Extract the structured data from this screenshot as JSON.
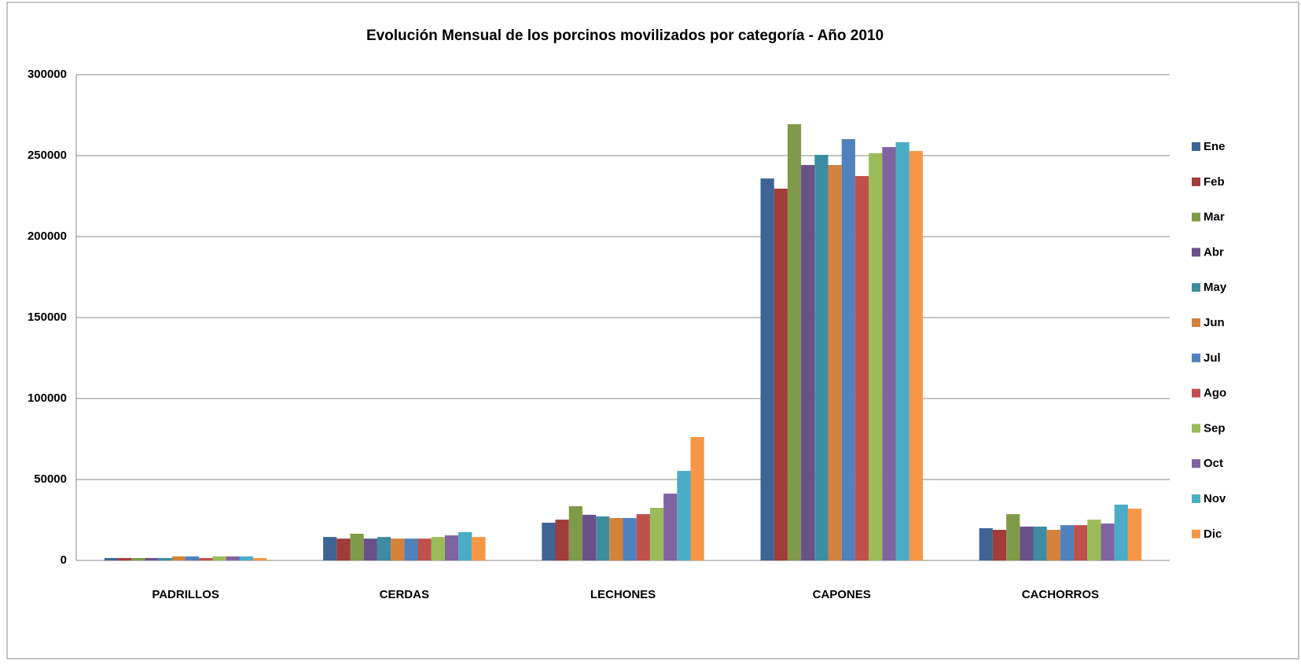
{
  "chart_data": {
    "type": "bar",
    "title": "Evolución Mensual de los porcinos movilizados por categoría - Año 2010",
    "categories": [
      "PADRILLOS",
      "CERDAS",
      "LECHONES",
      "CAPONES",
      "CACHORROS"
    ],
    "series": [
      {
        "name": "Ene",
        "color": "#3e6496",
        "values": [
          1500,
          14500,
          23300,
          235900,
          19900
        ]
      },
      {
        "name": "Feb",
        "color": "#a03c3a",
        "values": [
          1500,
          13500,
          25200,
          229600,
          18900
        ]
      },
      {
        "name": "Mar",
        "color": "#7f9a48",
        "values": [
          1500,
          16500,
          33500,
          269400,
          28600
        ]
      },
      {
        "name": "Abr",
        "color": "#6a5088",
        "values": [
          1500,
          13500,
          28200,
          244200,
          20900
        ]
      },
      {
        "name": "May",
        "color": "#3d8da2",
        "values": [
          1500,
          14500,
          27200,
          250500,
          20900
        ]
      },
      {
        "name": "Jun",
        "color": "#d4813a",
        "values": [
          2500,
          13500,
          26200,
          244200,
          18900
        ]
      },
      {
        "name": "Jul",
        "color": "#4f81bd",
        "values": [
          2500,
          13500,
          26200,
          260200,
          21800
        ]
      },
      {
        "name": "Ago",
        "color": "#c0504d",
        "values": [
          1500,
          13500,
          28600,
          237400,
          21800
        ]
      },
      {
        "name": "Sep",
        "color": "#9bbb59",
        "values": [
          2500,
          14500,
          32500,
          251500,
          25200
        ]
      },
      {
        "name": "Oct",
        "color": "#8064a2",
        "values": [
          2500,
          15500,
          41300,
          255300,
          22800
        ]
      },
      {
        "name": "Nov",
        "color": "#4bacc6",
        "values": [
          2500,
          17500,
          55300,
          258300,
          34500
        ]
      },
      {
        "name": "Dic",
        "color": "#f79646",
        "values": [
          1500,
          14500,
          76200,
          252900,
          32000
        ]
      }
    ],
    "ylim": [
      0,
      300000
    ],
    "yticks": [
      0,
      50000,
      100000,
      150000,
      200000,
      250000,
      300000
    ],
    "grid": true,
    "legend": "right"
  }
}
